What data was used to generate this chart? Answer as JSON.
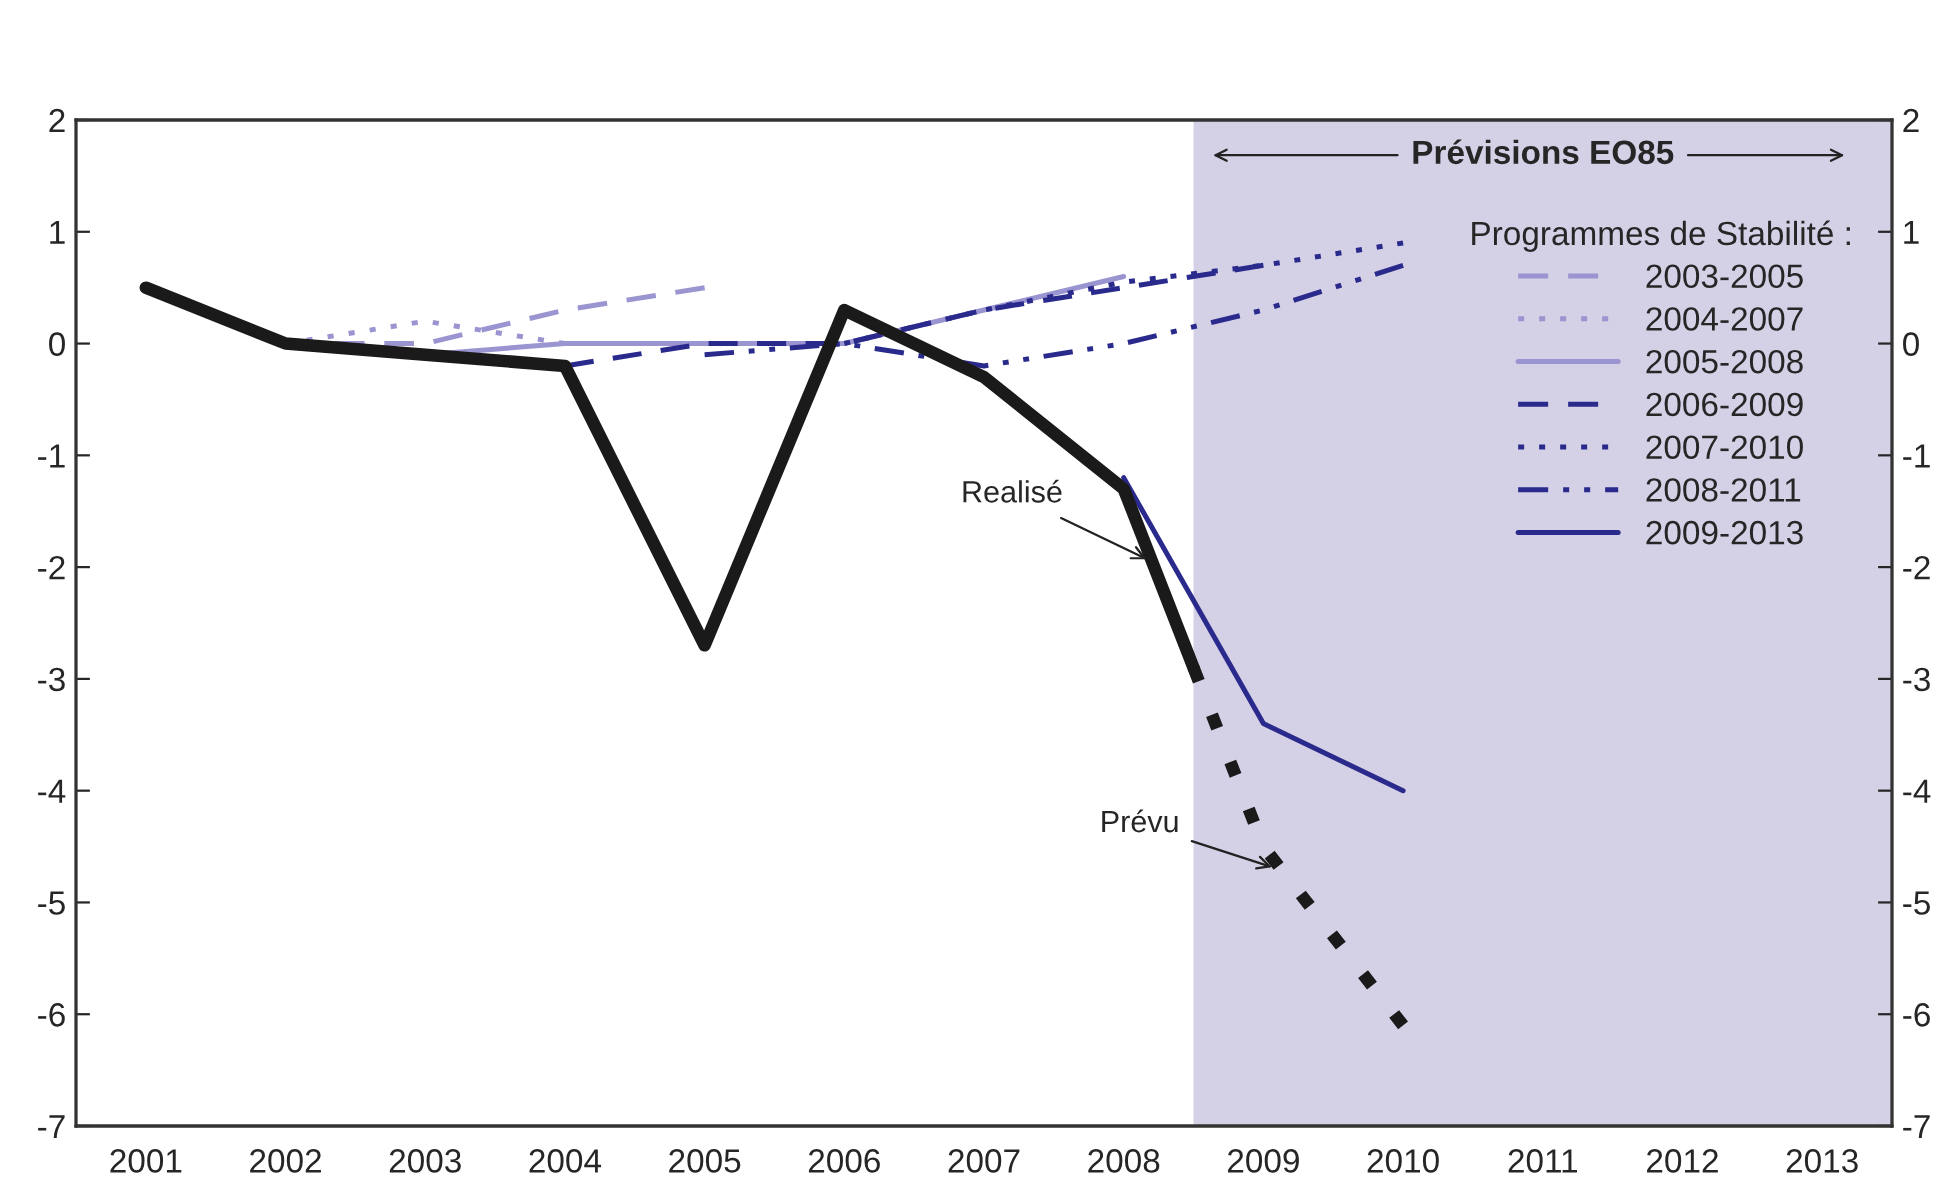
{
  "chart_data": {
    "type": "line",
    "xlim": [
      2000.5,
      2013.5
    ],
    "xticks": [
      2001,
      2002,
      2003,
      2004,
      2005,
      2006,
      2007,
      2008,
      2009,
      2010,
      2011,
      2012,
      2013
    ],
    "ylim": [
      -7,
      2
    ],
    "yticks": [
      -7,
      -6,
      -5,
      -4,
      -3,
      -2,
      -1,
      0,
      1,
      2
    ],
    "y2lim": [
      -7,
      2
    ],
    "y2ticks": [
      -7,
      -6,
      -5,
      -4,
      -3,
      -2,
      -1,
      0,
      1,
      2
    ],
    "grid": false,
    "legend": "top right",
    "legend_title": "Programmes de Stabilité :",
    "series": [
      {
        "name": "2003-2005",
        "color": "#9a94d0",
        "line_style": "dashed",
        "x": [
          2002,
          2003,
          2004,
          2005
        ],
        "values": [
          0,
          0,
          0.3,
          0.5
        ]
      },
      {
        "name": "2004-2007",
        "color": "#9a94d0",
        "line_style": "dotted",
        "x": [
          2002,
          2003,
          2004
        ],
        "values": [
          0,
          0.2,
          0
        ]
      },
      {
        "name": "2005-2008",
        "color": "#9a94d0",
        "line_style": "solid",
        "x": [
          2003,
          2004,
          2005,
          2006,
          2007,
          2008
        ],
        "values": [
          -0.1,
          0,
          0,
          0,
          0.3,
          0.6
        ]
      },
      {
        "name": "2006-2009",
        "color": "#2a2a8c",
        "line_style": "dashed",
        "x": [
          2004,
          2005,
          2006,
          2007,
          2008,
          2009
        ],
        "values": [
          -0.2,
          0,
          0,
          0.3,
          0.5,
          0.7
        ]
      },
      {
        "name": "2007-2010",
        "color": "#2a2a8c",
        "line_style": "dotted",
        "x": [
          2006,
          2007,
          2008,
          2009,
          2010
        ],
        "values": [
          0,
          0.3,
          0.55,
          0.7,
          0.9
        ]
      },
      {
        "name": "2008-2011",
        "color": "#2a2a8c",
        "line_style": "dashdot",
        "x": [
          2005,
          2006,
          2007,
          2008,
          2009,
          2010
        ],
        "values": [
          -0.1,
          0,
          -0.2,
          0,
          0.3,
          0.7
        ]
      },
      {
        "name": "2009-2013",
        "color": "#2a2a8c",
        "line_style": "solid",
        "x": [
          2008,
          2009,
          2010
        ],
        "values": [
          -1.2,
          -3.4,
          -4.0
        ]
      },
      {
        "color": "#1a1a1a",
        "line_style": "solid",
        "x": [
          2001,
          2002,
          2003,
          2004,
          2005,
          2006,
          2007,
          2008,
          2008.5
        ],
        "values": [
          0.5,
          0,
          -0.1,
          -0.2,
          -2.7,
          0.3,
          -0.3,
          -1.3,
          -2.9
        ]
      },
      {
        "color": "#1a1a1a",
        "line_style": "dotted",
        "x": [
          2008.5,
          2009,
          2010
        ],
        "values": [
          -2.9,
          -4.5,
          -6.1
        ]
      }
    ],
    "bands": [
      {
        "axis": "x",
        "from": 2008.5,
        "to": 2013.5,
        "label": "Prévisions EO85",
        "color": "#d4d0e6"
      }
    ],
    "annotations": [
      {
        "text": "Realisé",
        "x": 2008.2,
        "y": -1.95
      },
      {
        "text": "Prévu",
        "x": 2009.1,
        "y": -4.7
      }
    ]
  }
}
